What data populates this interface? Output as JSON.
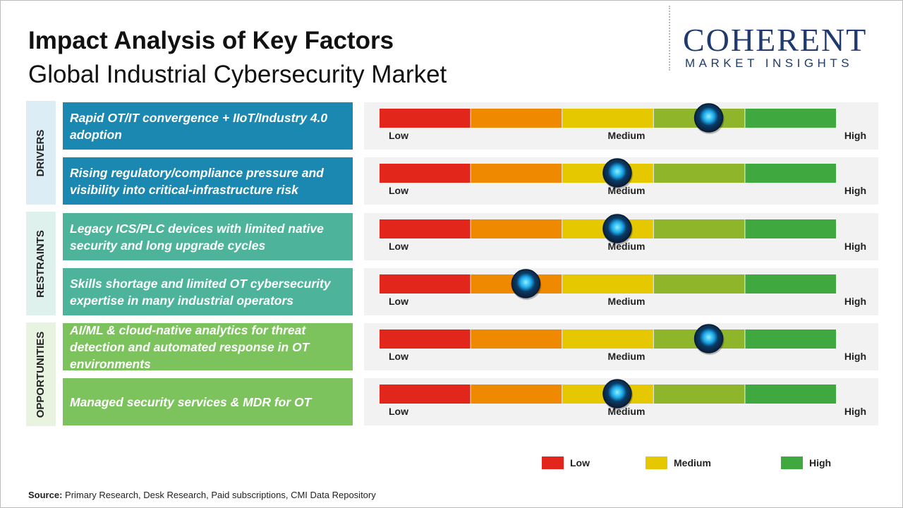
{
  "header": {
    "title": "Impact Analysis of Key Factors",
    "subtitle": "Global Industrial Cybersecurity Market"
  },
  "logo": {
    "name": "COHERENT",
    "tagline": "MARKET INSIGHTS"
  },
  "scale": {
    "min": 0,
    "max": 5,
    "labels": [
      "Low",
      "Medium",
      "High"
    ],
    "segment_colors": [
      "#e2261b",
      "#ef8a00",
      "#e6c800",
      "#8fb52a",
      "#3fa83f"
    ]
  },
  "groups": [
    {
      "label": "DRIVERS",
      "color": "#1a88b0",
      "panel": "#dcedf6",
      "factors": [
        {
          "text": "Rapid OT/IT convergence + IIoT/Industry 4.0 adoption",
          "impact": 3.6
        },
        {
          "text": "Rising regulatory/compliance pressure and visibility into critical-infrastructure risk",
          "impact": 2.6
        }
      ]
    },
    {
      "label": "RESTRAINTS",
      "color": "#4db39a",
      "panel": "#dff1ec",
      "factors": [
        {
          "text": "Legacy ICS/PLC devices with limited native security and long upgrade cycles",
          "impact": 2.6
        },
        {
          "text": "Skills shortage and limited OT cybersecurity expertise in many industrial operators",
          "impact": 1.6
        }
      ]
    },
    {
      "label": "OPPORTUNITIES",
      "color": "#7cc35e",
      "panel": "#e8f4e0",
      "factors": [
        {
          "text": "AI/ML & cloud-native analytics for threat detection and automated response in OT environments",
          "impact": 3.6
        },
        {
          "text": "Managed security services & MDR for OT",
          "impact": 2.6
        }
      ]
    }
  ],
  "legend": [
    {
      "label": "Low",
      "color": "#e2261b"
    },
    {
      "label": "Medium",
      "color": "#e6c800"
    },
    {
      "label": "High",
      "color": "#3fa83f"
    }
  ],
  "source": {
    "label": "Source:",
    "text": "Primary Research, Desk Research, Paid subscriptions, CMI Data Repository"
  }
}
